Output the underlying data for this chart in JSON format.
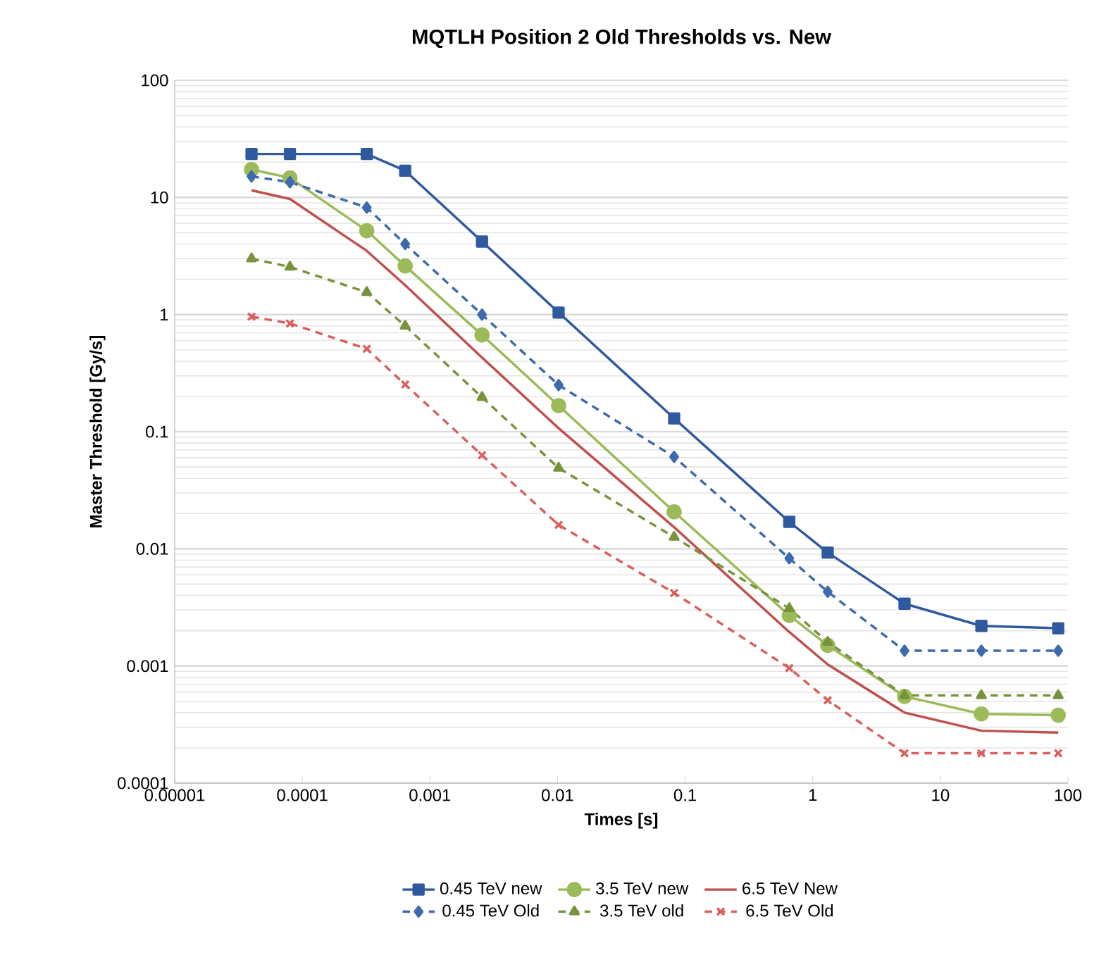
{
  "chart_data": {
    "type": "line",
    "title": "MQTLH Position 2 Old Thresholds vs. New",
    "xlabel": "Times [s]",
    "ylabel": "Master Threshold [Gy/s]",
    "log": "xy",
    "grid": "y",
    "legend": "bottom",
    "x": [
      4e-05,
      8e-05,
      0.00032,
      0.00064,
      0.00256,
      0.0102,
      0.082,
      0.655,
      1.31,
      5.24,
      20.97,
      83.89
    ],
    "xlim": [
      1e-05,
      100
    ],
    "ylim": [
      0.0001,
      100
    ],
    "xticks": [
      {
        "value": 1e-05,
        "label": "0.00001"
      },
      {
        "value": 0.0001,
        "label": "0.0001"
      },
      {
        "value": 0.001,
        "label": "0.001"
      },
      {
        "value": 0.01,
        "label": "0.01"
      },
      {
        "value": 0.1,
        "label": "0.1"
      },
      {
        "value": 1,
        "label": "1"
      },
      {
        "value": 10,
        "label": "10"
      },
      {
        "value": 100,
        "label": "100"
      }
    ],
    "yticks": [
      {
        "value": 0.0001,
        "label": "0.0001"
      },
      {
        "value": 0.001,
        "label": "0.001"
      },
      {
        "value": 0.01,
        "label": "0.01"
      },
      {
        "value": 0.1,
        "label": "0.1"
      },
      {
        "value": 1,
        "label": "1"
      },
      {
        "value": 10,
        "label": "10"
      },
      {
        "value": 100,
        "label": "100"
      }
    ],
    "series": [
      {
        "name": "0.45 TeV new",
        "color": "#2f5a9e",
        "marker": "square",
        "line_style": "solid",
        "values": [
          23.5,
          23.5,
          23.5,
          16.9,
          4.2,
          1.04,
          0.13,
          0.017,
          0.0093,
          0.0034,
          0.0022,
          0.0021
        ]
      },
      {
        "name": "3.5 TeV new",
        "color": "#9bbb59",
        "marker": "circle",
        "line_style": "solid",
        "values": [
          17.3,
          14.7,
          5.2,
          2.6,
          0.67,
          0.167,
          0.0207,
          0.0027,
          0.0015,
          0.00055,
          0.00039,
          0.00038
        ]
      },
      {
        "name": "6.5 TeV New",
        "color": "#c0504d",
        "marker": "none",
        "line_style": "solid",
        "values": [
          11.5,
          9.7,
          3.5,
          1.78,
          0.43,
          0.107,
          0.0153,
          0.00195,
          0.00103,
          0.0004,
          0.00028,
          0.00027
        ]
      },
      {
        "name": "0.45 TeV Old",
        "color": "#3c6aad",
        "marker": "diamond",
        "line_style": "dashed",
        "values": [
          15.1,
          13.5,
          8.2,
          4.0,
          1.0,
          0.25,
          0.061,
          0.0083,
          0.0043,
          0.00135,
          0.00135,
          0.00135
        ]
      },
      {
        "name": "3.5 TeV old",
        "color": "#77933c",
        "marker": "triangle",
        "line_style": "dashed",
        "values": [
          3.0,
          2.55,
          1.55,
          0.8,
          0.197,
          0.049,
          0.0126,
          0.0031,
          0.0016,
          0.00056,
          0.00056,
          0.00056
        ]
      },
      {
        "name": "6.5 TeV Old",
        "color": "#d9605c",
        "marker": "cross",
        "line_style": "dashed",
        "values": [
          0.96,
          0.84,
          0.51,
          0.253,
          0.063,
          0.016,
          0.0042,
          0.00096,
          0.00051,
          0.00018,
          0.00018,
          0.00018
        ]
      }
    ]
  }
}
